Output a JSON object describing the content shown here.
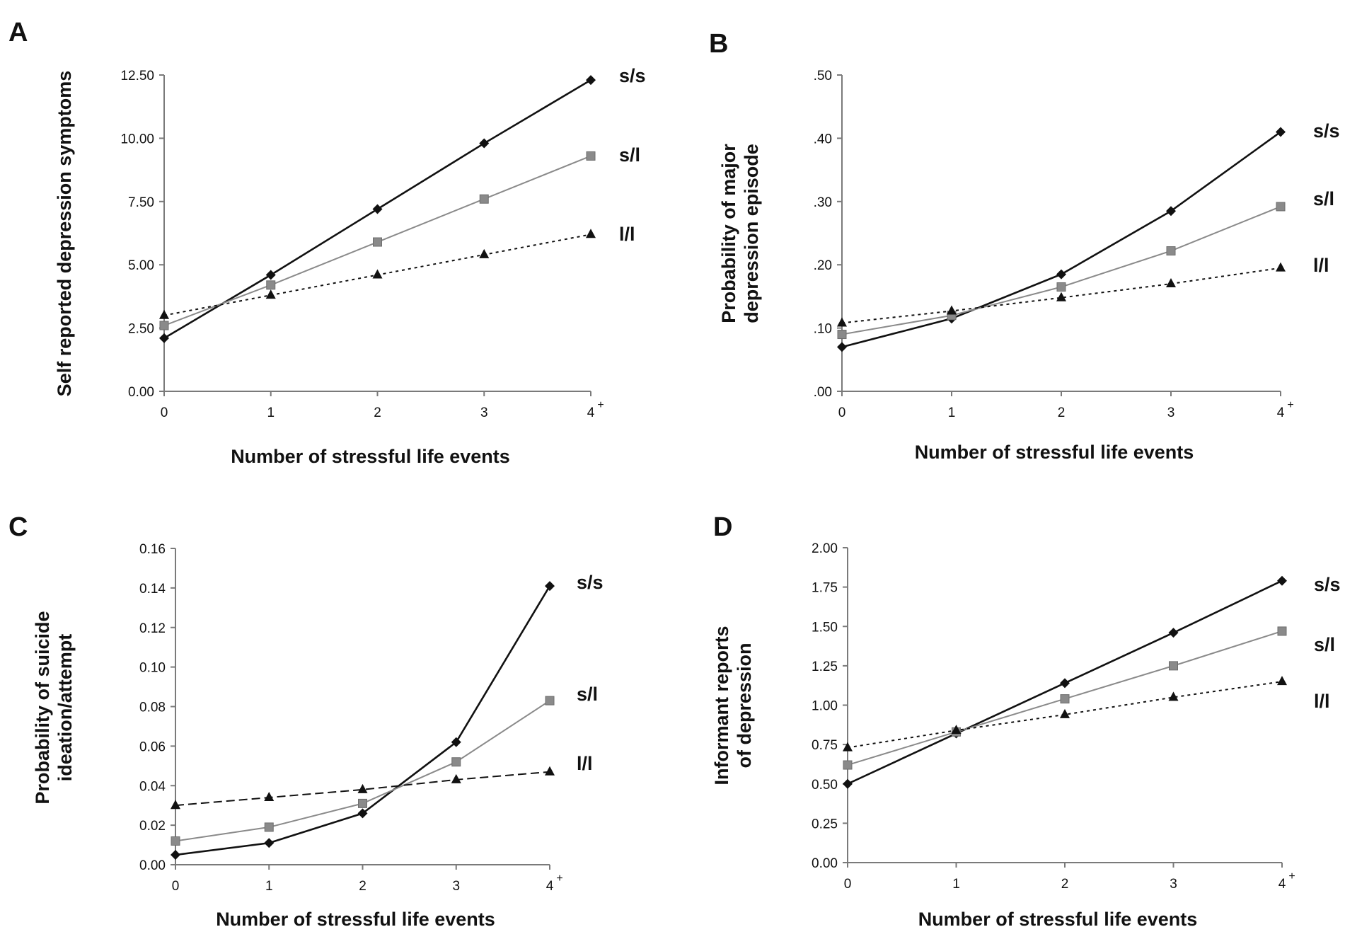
{
  "chart_data": [
    {
      "type": "line",
      "panel": "A",
      "x": [
        "0",
        "1",
        "2",
        "3",
        "4"
      ],
      "x_last_superscript": "+",
      "xlabel": "Number of stressful life events",
      "ylabel": "Self reported depression symptoms",
      "ylim": [
        0,
        12.5
      ],
      "yticks": [
        "0.00",
        "2.50",
        "5.00",
        "7.50",
        "10.00",
        "12.50"
      ],
      "grid": false,
      "series": [
        {
          "name": "s/s",
          "values": [
            2.1,
            4.6,
            7.2,
            9.8,
            12.3
          ],
          "marker": "diamond",
          "style": "solid",
          "color": "#111111"
        },
        {
          "name": "s/l",
          "values": [
            2.6,
            4.2,
            5.9,
            7.6,
            9.3
          ],
          "marker": "square",
          "style": "solid",
          "color": "#8a8a8a"
        },
        {
          "name": "l/l",
          "values": [
            3.0,
            3.8,
            4.6,
            5.4,
            6.2
          ],
          "marker": "triangle",
          "style": "dotted",
          "color": "#111111"
        }
      ]
    },
    {
      "type": "line",
      "panel": "B",
      "x": [
        "0",
        "1",
        "2",
        "3",
        "4"
      ],
      "x_last_superscript": "+",
      "xlabel": "Number of stressful life events",
      "ylabel": "Probability of major depression episode",
      "ylabel_lines": [
        "Probability of major",
        "depression episode"
      ],
      "ylim": [
        0,
        0.5
      ],
      "yticks": [
        ".00",
        ".10",
        ".20",
        ".30",
        ".40",
        ".50"
      ],
      "grid": false,
      "series": [
        {
          "name": "s/s",
          "values": [
            0.07,
            0.115,
            0.185,
            0.285,
            0.41
          ],
          "marker": "diamond",
          "style": "solid",
          "color": "#111111"
        },
        {
          "name": "s/l",
          "values": [
            0.09,
            0.12,
            0.165,
            0.222,
            0.292
          ],
          "marker": "square",
          "style": "solid",
          "color": "#8a8a8a"
        },
        {
          "name": "l/l",
          "values": [
            0.108,
            0.127,
            0.148,
            0.17,
            0.195
          ],
          "marker": "triangle",
          "style": "dotted",
          "color": "#111111"
        }
      ]
    },
    {
      "type": "line",
      "panel": "C",
      "x": [
        "0",
        "1",
        "2",
        "3",
        "4"
      ],
      "x_last_superscript": "+",
      "xlabel": "Number of stressful life events",
      "ylabel": "Probability of suicide ideation/attempt",
      "ylabel_lines": [
        "Probability of suicide",
        "ideation/attempt"
      ],
      "ylim": [
        0,
        0.16
      ],
      "yticks": [
        "0.00",
        "0.02",
        "0.04",
        "0.06",
        "0.08",
        "0.10",
        "0.12",
        "0.14",
        "0.16"
      ],
      "grid": false,
      "series": [
        {
          "name": "s/s",
          "values": [
            0.005,
            0.011,
            0.026,
            0.062,
            0.141
          ],
          "marker": "diamond",
          "style": "solid",
          "color": "#111111"
        },
        {
          "name": "s/l",
          "values": [
            0.012,
            0.019,
            0.031,
            0.052,
            0.083
          ],
          "marker": "square",
          "style": "solid",
          "color": "#8a8a8a"
        },
        {
          "name": "l/l",
          "values": [
            0.03,
            0.034,
            0.038,
            0.043,
            0.047
          ],
          "marker": "triangle",
          "style": "dashed",
          "color": "#111111"
        }
      ]
    },
    {
      "type": "line",
      "panel": "D",
      "x": [
        "0",
        "1",
        "2",
        "3",
        "4"
      ],
      "x_last_superscript": "+",
      "xlabel": "Number of stressful life events",
      "ylabel": "Informant reports of depression",
      "ylabel_lines": [
        "Informant reports",
        "of depression"
      ],
      "ylim": [
        0,
        2
      ],
      "yticks": [
        "0.00",
        "0.25",
        "0.50",
        "0.75",
        "1.00",
        "1.25",
        "1.50",
        "1.75",
        "2.00"
      ],
      "grid": false,
      "series": [
        {
          "name": "s/s",
          "values": [
            0.5,
            0.82,
            1.14,
            1.46,
            1.79
          ],
          "marker": "diamond",
          "style": "solid",
          "color": "#111111"
        },
        {
          "name": "s/l",
          "values": [
            0.62,
            0.83,
            1.04,
            1.25,
            1.47
          ],
          "marker": "square",
          "style": "solid",
          "color": "#8a8a8a"
        },
        {
          "name": "l/l",
          "values": [
            0.73,
            0.84,
            0.94,
            1.05,
            1.15
          ],
          "marker": "triangle",
          "style": "dotted",
          "color": "#111111"
        }
      ]
    }
  ]
}
